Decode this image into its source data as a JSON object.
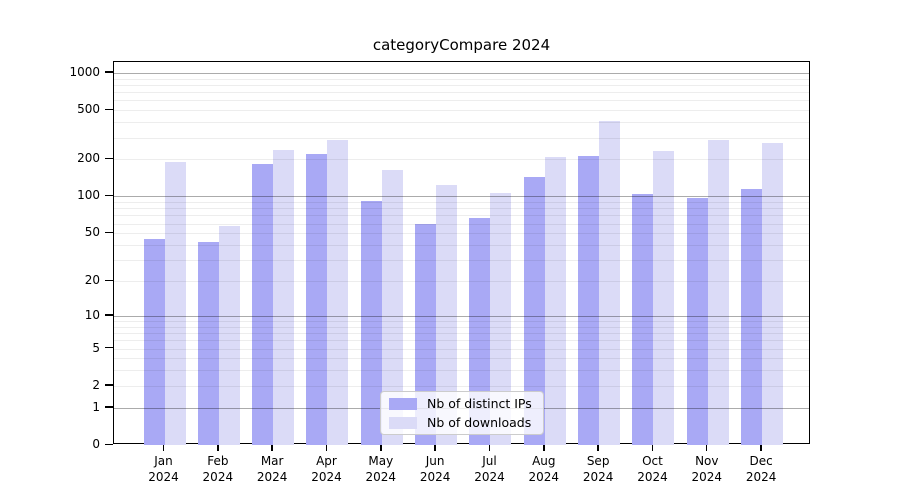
{
  "chart_data": {
    "type": "bar",
    "title": "categoryCompare 2024",
    "categories": [
      "Jan",
      "Feb",
      "Mar",
      "Apr",
      "May",
      "Jun",
      "Jul",
      "Aug",
      "Sep",
      "Oct",
      "Nov",
      "Dec"
    ],
    "x_year_label": "2024",
    "series": [
      {
        "name": "Nb of distinct IPs",
        "color": "#A9A9F5",
        "values": [
          45,
          42,
          185,
          220,
          92,
          60,
          67,
          145,
          215,
          104,
          97,
          115
        ]
      },
      {
        "name": "Nb of downloads",
        "color": "#DBDBF7",
        "values": [
          190,
          57,
          240,
          285,
          165,
          125,
          107,
          210,
          410,
          235,
          285,
          270
        ]
      }
    ],
    "y_ticks": [
      0,
      1,
      2,
      5,
      10,
      20,
      50,
      100,
      200,
      500,
      1000
    ],
    "y_major_gridlines": [
      1,
      10,
      100,
      1000
    ],
    "y_minor_gridlines": [
      2,
      3,
      4,
      5,
      6,
      7,
      8,
      9,
      20,
      30,
      40,
      50,
      60,
      70,
      80,
      90,
      200,
      300,
      400,
      500,
      600,
      700,
      800,
      900
    ],
    "y_scale": "log10(value+1)",
    "ylim": [
      0,
      1200
    ],
    "grid": "horizontal",
    "legend_position": "inside-bottom-center",
    "colors": {
      "axis": "#000000",
      "major_grid": "#a6a6a6",
      "minor_grid": "#ededed"
    }
  }
}
